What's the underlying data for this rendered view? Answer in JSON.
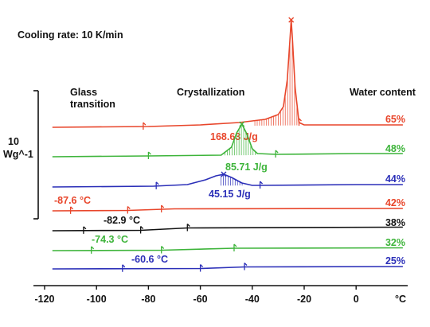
{
  "chart_data": {
    "type": "line",
    "title": "Cooling rate: 10 K/min",
    "xlabel": "°C",
    "xlim": [
      -120,
      20
    ],
    "xticks": [
      "-120",
      "-100",
      "-80",
      "-60",
      "-40",
      "-20",
      "0"
    ],
    "column_headers": {
      "glass_line1": "Glass",
      "glass_line2": "transition",
      "crystallization": "Crystallization",
      "water": "Water content"
    },
    "scale_bar": {
      "line1": "10",
      "line2": "Wg^-1"
    },
    "colors": {
      "red": "#e8452a",
      "green": "#3db43a",
      "blue": "#2b2fb8",
      "black": "#111111"
    },
    "series": [
      {
        "name": "65%",
        "color": "#e8452a",
        "x": [
          -117,
          -80,
          -60,
          -45,
          -35,
          -30,
          -28,
          -26.5,
          -25.5,
          -25,
          -24.5,
          -23.5,
          -22,
          -20,
          0,
          18
        ],
        "y": [
          0,
          0.1,
          0.3,
          0.6,
          1.0,
          1.6,
          2.6,
          6,
          11,
          13.5,
          11,
          5,
          0.6,
          0.3,
          0.3,
          0.3
        ],
        "peak_x": -25,
        "enthalpy": "168.63 J/g",
        "markers_x": [
          -82,
          -22
        ]
      },
      {
        "name": "48%",
        "color": "#3db43a",
        "x": [
          -117,
          -80,
          -52,
          -48,
          -46,
          -44,
          -42,
          -40,
          -38,
          -31,
          0,
          18
        ],
        "y": [
          0,
          0.1,
          0.2,
          1.2,
          3.0,
          4.1,
          2.8,
          1.0,
          0.4,
          0.3,
          0.4,
          0.4
        ],
        "peak_x": -44,
        "enthalpy": "85.71 J/g",
        "markers_x": [
          -80,
          -31
        ]
      },
      {
        "name": "44%",
        "color": "#2b2fb8",
        "x": [
          -117,
          -78,
          -65,
          -58,
          -54,
          -51,
          -48,
          -44,
          -40,
          -37,
          0,
          18
        ],
        "y": [
          0,
          0.1,
          0.3,
          0.9,
          1.4,
          1.6,
          1.2,
          0.5,
          0.2,
          0.2,
          0.3,
          0.3
        ],
        "peak_x": -51,
        "enthalpy": "45.15 J/g",
        "markers_x": [
          -77,
          -37
        ]
      },
      {
        "name": "42%",
        "color": "#e8452a",
        "x": [
          -117,
          -88,
          -70,
          18
        ],
        "y": [
          0,
          0.05,
          0.25,
          0.3
        ],
        "tg_label": "-87.6 °C",
        "markers_x": [
          -110,
          -88,
          -75
        ]
      },
      {
        "name": "38%",
        "color": "#111111",
        "x": [
          -117,
          -83,
          -65,
          18
        ],
        "y": [
          0,
          0.05,
          0.35,
          0.45
        ],
        "tg_label": "-82.9 °C",
        "markers_x": [
          -105,
          -83,
          -65
        ]
      },
      {
        "name": "32%",
        "color": "#3db43a",
        "x": [
          -117,
          -75,
          -47,
          18
        ],
        "y": [
          0,
          0.05,
          0.3,
          0.35
        ],
        "tg_label": "-74.3 °C",
        "markers_x": [
          -102,
          -75,
          -47
        ]
      },
      {
        "name": "25%",
        "color": "#2b2fb8",
        "x": [
          -117,
          -60,
          -43,
          18
        ],
        "y": [
          0,
          0.05,
          0.25,
          0.3
        ],
        "tg_label": "-60.6 °C",
        "markers_x": [
          -90,
          -60,
          -43
        ]
      }
    ]
  }
}
